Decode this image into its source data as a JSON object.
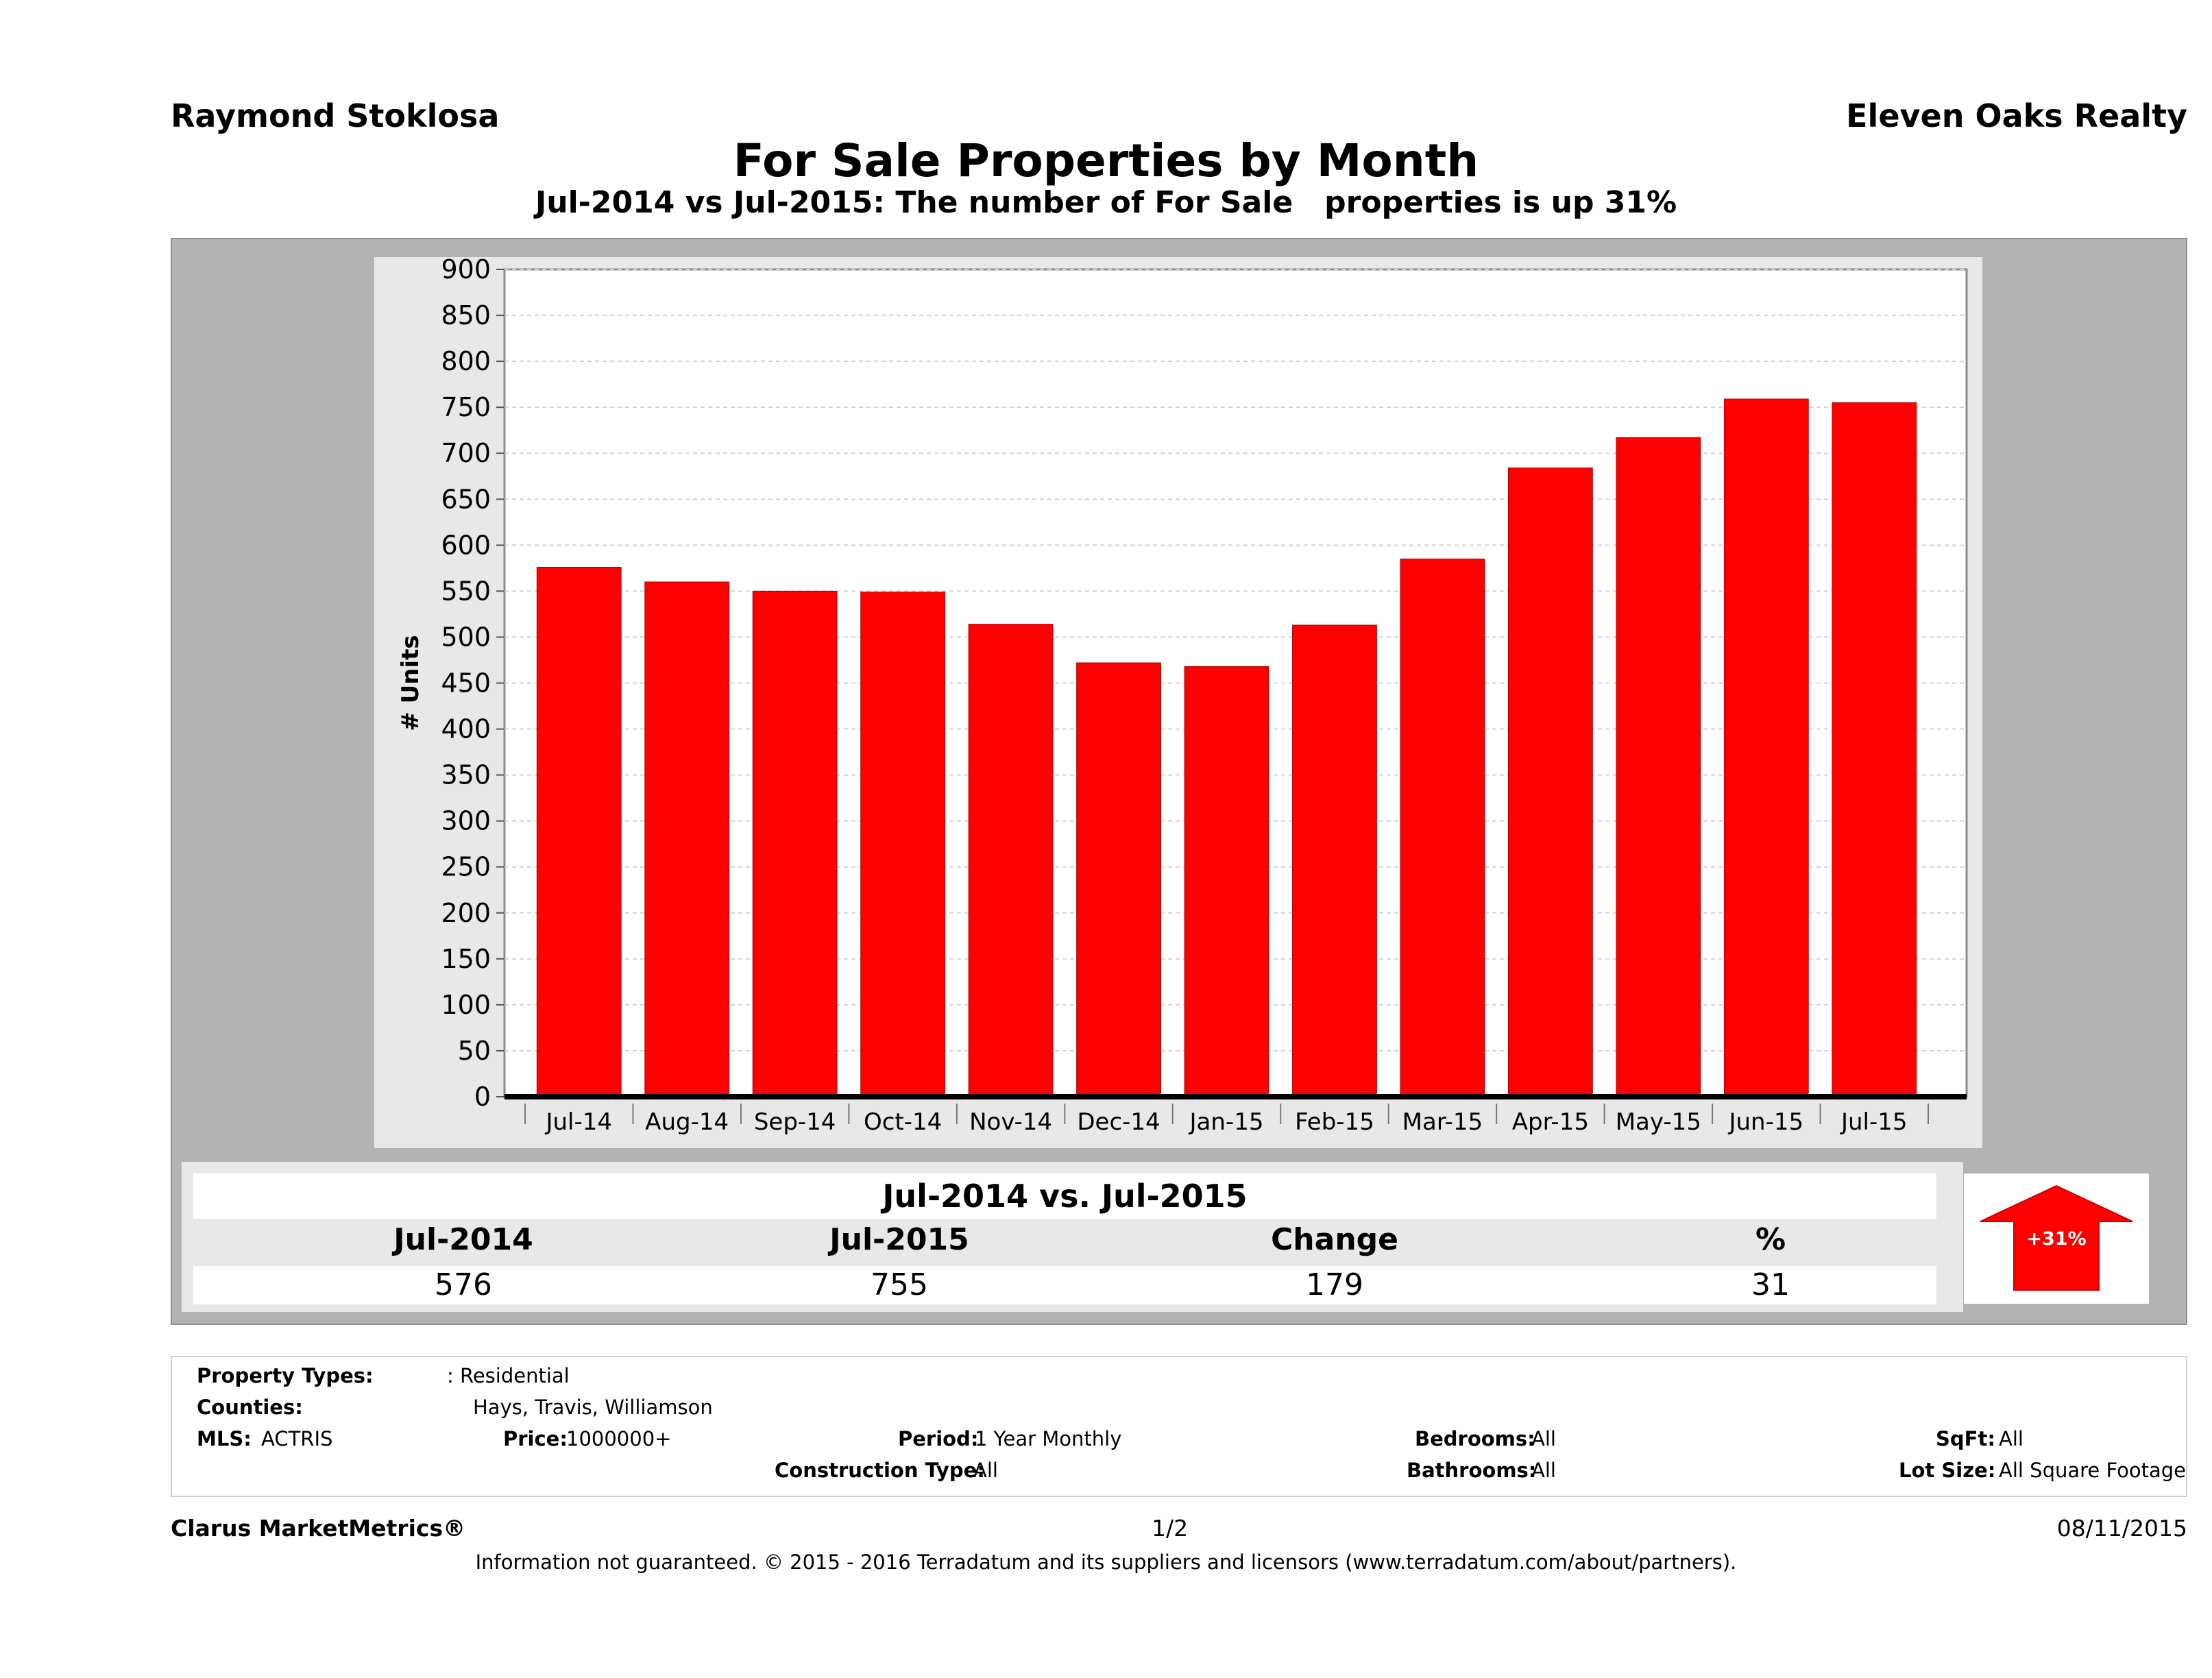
{
  "header": {
    "agent": "Raymond Stoklosa",
    "brokerage": "Eleven Oaks Realty"
  },
  "title": "For Sale Properties by Month",
  "subtitle": "Jul-2014 vs Jul-2015: The number of For Sale   properties is up 31%",
  "chart_data": {
    "type": "bar",
    "categories": [
      "Jul-14",
      "Aug-14",
      "Sep-14",
      "Oct-14",
      "Nov-14",
      "Dec-14",
      "Jan-15",
      "Feb-15",
      "Mar-15",
      "Apr-15",
      "May-15",
      "Jun-15",
      "Jul-15"
    ],
    "values": [
      576,
      560,
      550,
      549,
      514,
      472,
      468,
      513,
      585,
      684,
      717,
      759,
      755
    ],
    "ylabel": "# Units",
    "xlabel": "",
    "ylim": [
      0,
      900
    ],
    "yticks": [
      0,
      50,
      100,
      150,
      200,
      250,
      300,
      350,
      400,
      450,
      500,
      550,
      600,
      650,
      700,
      750,
      800,
      850,
      900
    ],
    "grid": true,
    "bar_color": "#ff0000"
  },
  "summary": {
    "title": "Jul-2014 vs. Jul-2015",
    "headers": [
      "Jul-2014",
      "Jul-2015",
      "Change",
      "%"
    ],
    "values": [
      "576",
      "755",
      "179",
      "31"
    ],
    "badge": "+31%",
    "badge_color": "#ff0000"
  },
  "info": {
    "property_types_label": "Property Types:",
    "property_types_value": ": Residential",
    "counties_label": "Counties:",
    "counties_value": "Hays, Travis, Williamson",
    "mls_label": "MLS:",
    "mls_value": "ACTRIS",
    "price_label": "Price:",
    "price_value": "1000000+",
    "period_label": "Period:",
    "period_value": "1 Year Monthly",
    "construction_label": "Construction Type:",
    "construction_value": "All",
    "bedrooms_label": "Bedrooms:",
    "bedrooms_value": "All",
    "bathrooms_label": "Bathrooms:",
    "bathrooms_value": "All",
    "sqft_label": "SqFt:",
    "sqft_value": "All",
    "lotsize_label": "Lot Size:",
    "lotsize_value": "All Square Footage"
  },
  "footer": {
    "brand": "Clarus MarketMetrics®",
    "page": "1/2",
    "date": "08/11/2015",
    "disclaimer": "Information not guaranteed. © 2015 - 2016 Terradatum and its suppliers and licensors (www.terradatum.com/about/partners)."
  }
}
